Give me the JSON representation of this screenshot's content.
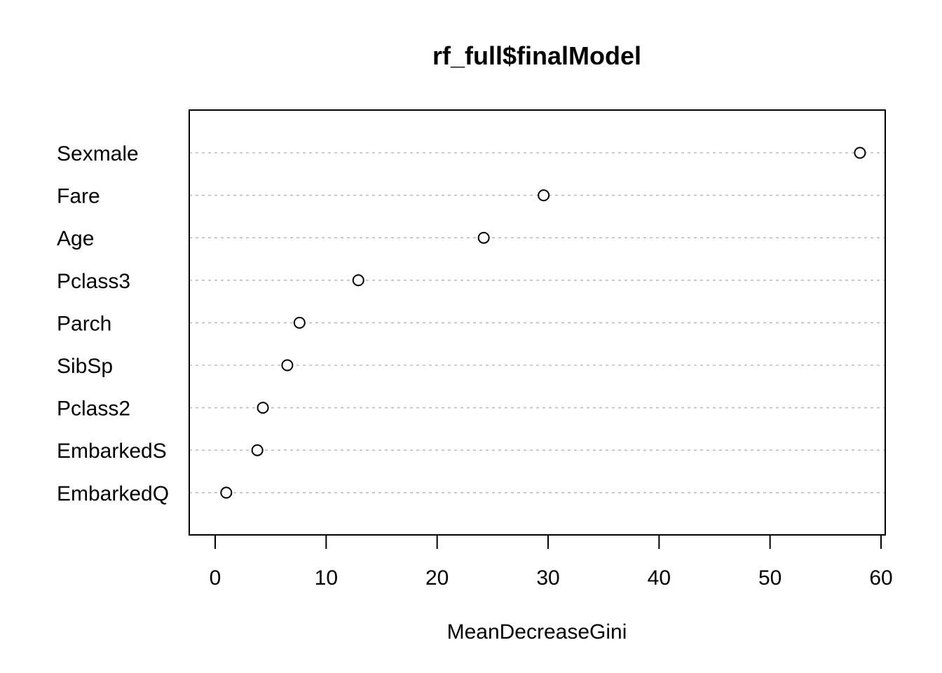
{
  "chart_data": {
    "type": "scatter",
    "title": "rf_full$finalModel",
    "xlabel": "MeanDecreaseGini",
    "ylabel": "",
    "xlim": [
      0,
      60
    ],
    "xticks": [
      0,
      10,
      20,
      30,
      40,
      50,
      60
    ],
    "grid": "dotted horizontal",
    "categories": [
      "Sexmale",
      "Fare",
      "Age",
      "Pclass3",
      "Parch",
      "SibSp",
      "Pclass2",
      "EmbarkedS",
      "EmbarkedQ"
    ],
    "values": [
      58.1,
      29.6,
      24.2,
      12.9,
      7.6,
      6.5,
      4.3,
      3.8,
      1.0
    ]
  }
}
